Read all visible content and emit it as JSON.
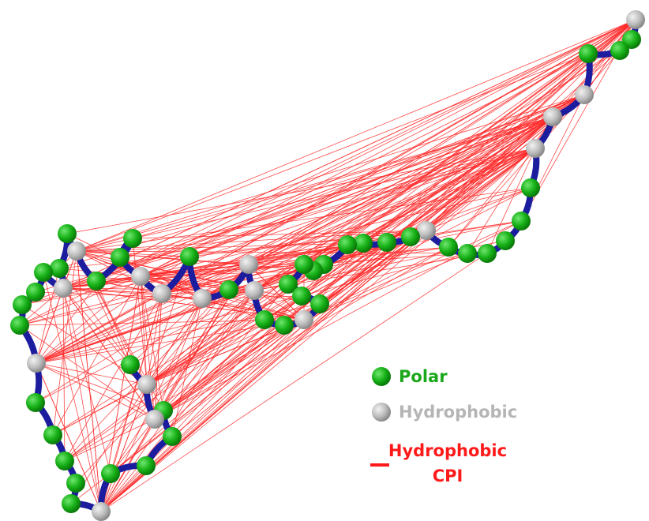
{
  "legend": {
    "items": [
      {
        "label": "Polar"
      },
      {
        "label": "Hydrophobic"
      },
      {
        "lines": [
          "Hydrophobic",
          "CPI"
        ]
      }
    ]
  }
}
